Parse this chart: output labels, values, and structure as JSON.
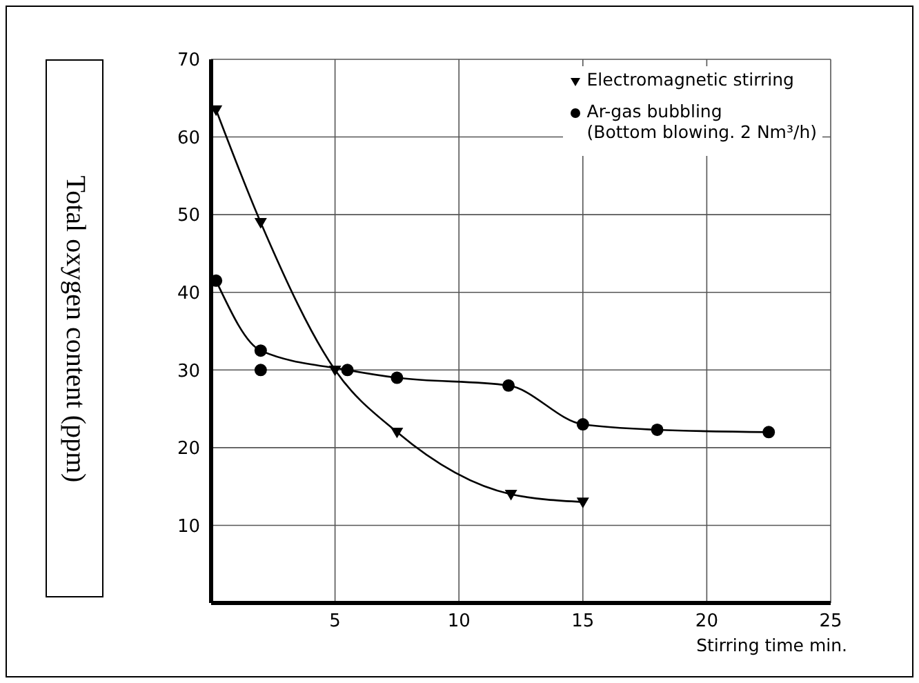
{
  "chart_data": {
    "type": "line",
    "xlabel": "Stirring time  min.",
    "ylabel": "Total oxygen content  (ppm)",
    "xlim": [
      0,
      25
    ],
    "xticks": [
      5,
      10,
      15,
      20,
      25
    ],
    "ylim": [
      0,
      70
    ],
    "yticks": [
      10,
      20,
      30,
      40,
      50,
      60,
      70
    ],
    "grid": true,
    "legend": "top right",
    "series": [
      {
        "name": "Electromagnetic stirring",
        "color": "#000000",
        "marker": "triangle",
        "x": [
          0.2,
          2,
          5,
          7.5,
          12.1,
          15
        ],
        "values": [
          63.5,
          49,
          30,
          22,
          14,
          13
        ]
      },
      {
        "name": "Ar-gas bubbling\n(Bottom blowing. 2 Nm³/h)",
        "color": "#000000",
        "marker": "circle",
        "x": [
          0.2,
          2,
          5.5,
          7.5,
          12,
          15,
          18,
          22.5
        ],
        "values": [
          41.5,
          32.5,
          30,
          29,
          28,
          23,
          22.3,
          22
        ]
      },
      {
        "type": "scatter",
        "color": "#000000",
        "marker": "circle",
        "x": [
          2
        ],
        "values": [
          30
        ]
      }
    ]
  }
}
